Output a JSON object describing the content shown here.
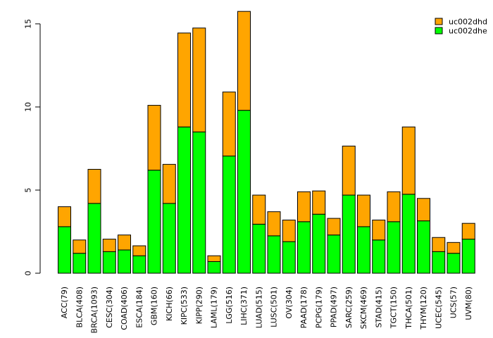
{
  "chart_data": {
    "type": "bar",
    "stacked": true,
    "categories": [
      "ACC(79)",
      "BLCA(408)",
      "BRCA(1093)",
      "CESC(304)",
      "COAD(406)",
      "ESCA(184)",
      "GBM(160)",
      "KICH(66)",
      "KIPC(533)",
      "KIPP(290)",
      "LAML(179)",
      "LGG(516)",
      "LIHC(371)",
      "LUAD(515)",
      "LUSC(501)",
      "OV(304)",
      "PAAD(178)",
      "PCPG(179)",
      "PPAD(497)",
      "SARC(259)",
      "SKCM(469)",
      "STAD(415)",
      "TGCT(150)",
      "THCA(501)",
      "THYM(120)",
      "UCEC(545)",
      "UCS(57)",
      "UVM(80)"
    ],
    "series": [
      {
        "name": "uc002dhe",
        "color": "#00ff00",
        "values": [
          2.8,
          1.2,
          4.2,
          1.3,
          1.4,
          1.05,
          6.2,
          4.2,
          8.8,
          8.5,
          0.7,
          7.05,
          9.8,
          2.95,
          2.25,
          1.9,
          3.1,
          3.55,
          2.3,
          4.7,
          2.8,
          2.0,
          3.1,
          4.75,
          3.15,
          1.3,
          1.2,
          2.05
        ]
      },
      {
        "name": "uc002dhd",
        "color": "#ffa500",
        "values": [
          1.2,
          0.8,
          2.05,
          0.75,
          0.9,
          0.6,
          3.9,
          2.35,
          5.65,
          6.25,
          0.35,
          3.85,
          5.95,
          1.75,
          1.45,
          1.3,
          1.8,
          1.4,
          1.0,
          2.95,
          1.9,
          1.2,
          1.8,
          4.05,
          1.35,
          0.85,
          0.65,
          0.95
        ]
      }
    ],
    "legend_order": [
      "uc002dhd",
      "uc002dhe"
    ],
    "legend_position": "top-right",
    "ylim": [
      0,
      15.8
    ],
    "yticks": [
      "0",
      "5",
      "10",
      "15"
    ],
    "title": "",
    "xlabel": "",
    "ylabel": "",
    "grid": false
  }
}
